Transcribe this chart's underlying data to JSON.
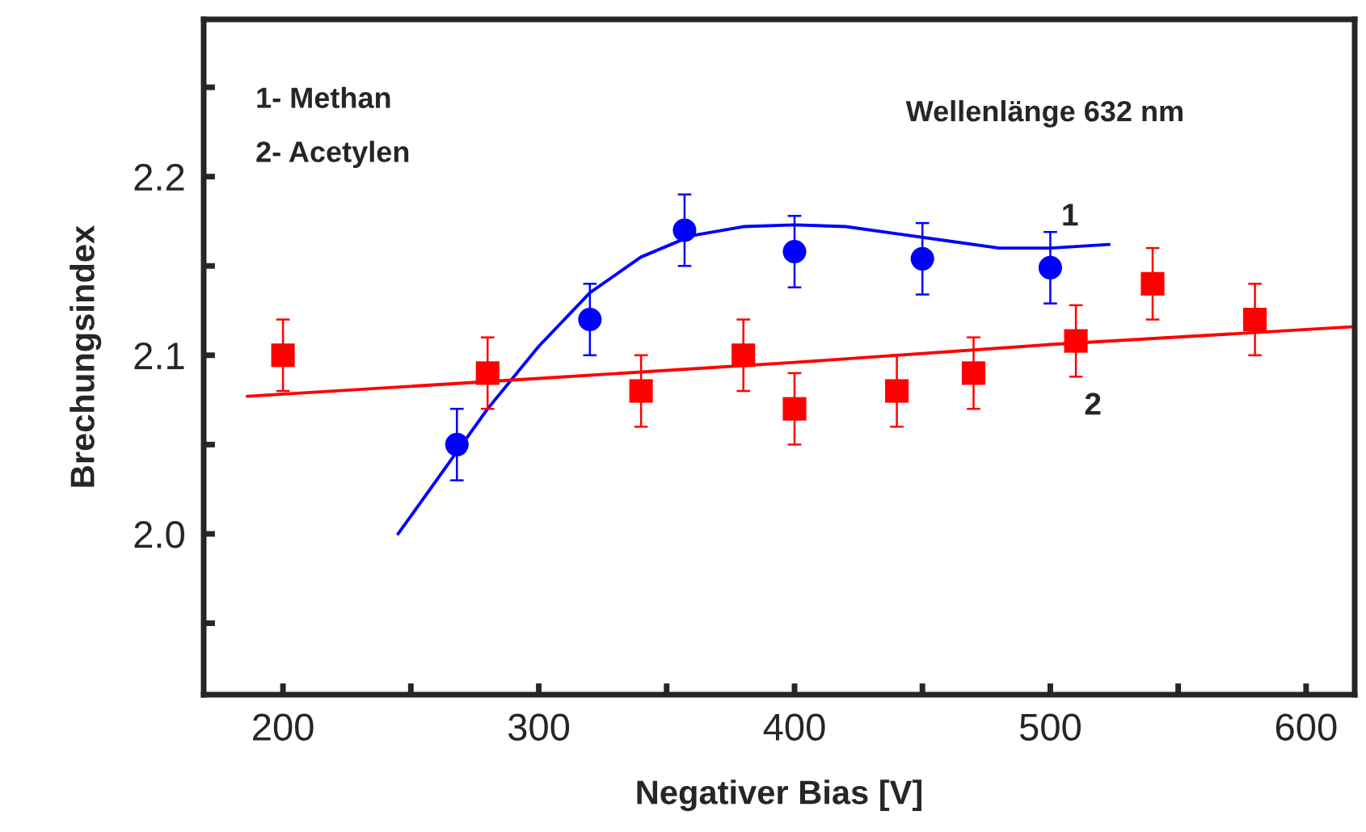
{
  "chart_data": {
    "type": "scatter",
    "xlabel": "Negativer Bias [V]",
    "ylabel": "Brechungsindex",
    "xlim": [
      169,
      619
    ],
    "ylim": [
      1.91,
      2.288
    ],
    "xticks": [
      200,
      {
        "value": 250,
        "label": null
      },
      300,
      {
        "value": 350,
        "label": null
      },
      400,
      {
        "value": 450,
        "label": null
      },
      500,
      {
        "value": 550,
        "label": null
      },
      600
    ],
    "yticks": [
      {
        "value": 1.95,
        "label": null
      },
      {
        "value": 2.0,
        "label": "2.0"
      },
      {
        "value": 2.05,
        "label": null
      },
      2.1,
      {
        "value": 2.15,
        "label": null
      },
      2.2,
      {
        "value": 2.25,
        "label": null
      }
    ],
    "grid": false,
    "annotations": [
      "1- Methan",
      "2- Acetylen",
      "Wellenlänge 632 nm",
      "1",
      "2"
    ],
    "series": [
      {
        "marker": "circle",
        "color": "#0000ff",
        "x": [
          268,
          320,
          357,
          400,
          450,
          500
        ],
        "values": [
          2.05,
          2.12,
          2.17,
          2.158,
          2.154,
          2.149
        ],
        "errors": [
          0.02,
          0.02,
          0.02,
          0.02,
          0.02,
          0.02
        ]
      },
      {
        "marker": "square",
        "color": "#ff0000",
        "x": [
          200,
          280,
          340,
          380,
          400,
          440,
          470,
          510,
          540,
          580
        ],
        "values": [
          2.1,
          2.09,
          2.08,
          2.1,
          2.07,
          2.08,
          2.09,
          2.108,
          2.14,
          2.12
        ],
        "errors": [
          0.02,
          0.02,
          0.02,
          0.02,
          0.02,
          0.02,
          0.02,
          0.02,
          0.02,
          0.02
        ]
      },
      {
        "type": "line",
        "color": "#0000ff",
        "x": [
          245,
          260,
          280,
          300,
          320,
          340,
          360,
          380,
          400,
          420,
          440,
          460,
          480,
          500,
          523
        ],
        "values": [
          2.0,
          2.03,
          2.07,
          2.105,
          2.135,
          2.155,
          2.167,
          2.172,
          2.173,
          2.172,
          2.168,
          2.164,
          2.16,
          2.16,
          2.162
        ]
      },
      {
        "type": "line",
        "color": "#ff0000",
        "x": [
          186,
          300,
          400,
          500,
          619
        ],
        "values": [
          2.077,
          2.087,
          2.096,
          2.106,
          2.116
        ]
      }
    ]
  }
}
